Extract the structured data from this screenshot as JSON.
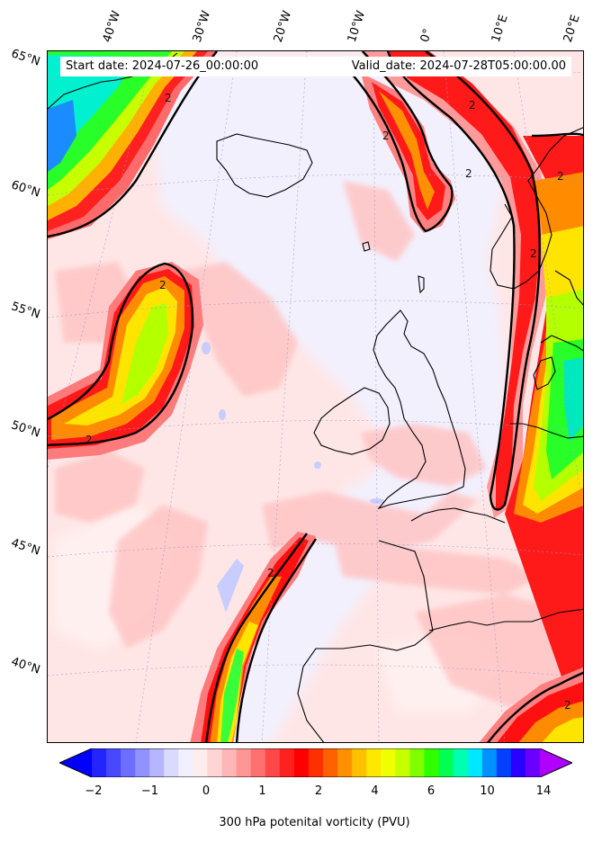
{
  "header": {
    "start_date": "Start date: 2024-07-26_00:00:00",
    "valid_date": "Valid_date: 2024-07-28T05:00:00.00"
  },
  "longitude_labels": [
    "40°W",
    "30°W",
    "20°W",
    "10°W",
    "0°",
    "10°E",
    "20°E"
  ],
  "latitude_labels": [
    "65°N",
    "60°N",
    "55°N",
    "50°N",
    "45°N",
    "40°N"
  ],
  "contour_labels": [
    "2",
    "2",
    "2",
    "2",
    "2",
    "2",
    "2",
    "2",
    "2",
    "2"
  ],
  "colorbar": {
    "label": "300 hPa potenital vorticity (PVU)",
    "ticks": [
      "−2",
      "−1",
      "0",
      "1",
      "2",
      "4",
      "6",
      "10",
      "14"
    ],
    "colors": [
      "#0000ff",
      "#2424ff",
      "#4848ff",
      "#6d6dff",
      "#9191ff",
      "#b6b6ff",
      "#dadaff",
      "#f0f0ff",
      "#ffecec",
      "#ffd4d4",
      "#ffb6b6",
      "#ff9696",
      "#ff7070",
      "#ff4848",
      "#ff2020",
      "#ff0000",
      "#ff3000",
      "#ff6000",
      "#ff9000",
      "#ffc000",
      "#ffe800",
      "#f0ff00",
      "#c8ff00",
      "#80ff00",
      "#30ff00",
      "#00ff50",
      "#00ffb0",
      "#00e8ff",
      "#0090ff",
      "#0040ff",
      "#2a00ff",
      "#6a00ff",
      "#b000ff"
    ]
  },
  "palette": {
    "pale": "#ffe8e8",
    "pink": "#ffc8c8",
    "salmon": "#ff8c8c",
    "red": "#ff2a2a",
    "orange": "#ff7a00",
    "yellow": "#ffe400",
    "lime": "#b4ff00",
    "green": "#20ff20",
    "cyan": "#00f0e0",
    "blue": "#1a8cff",
    "lavender": "#eeeeff"
  }
}
